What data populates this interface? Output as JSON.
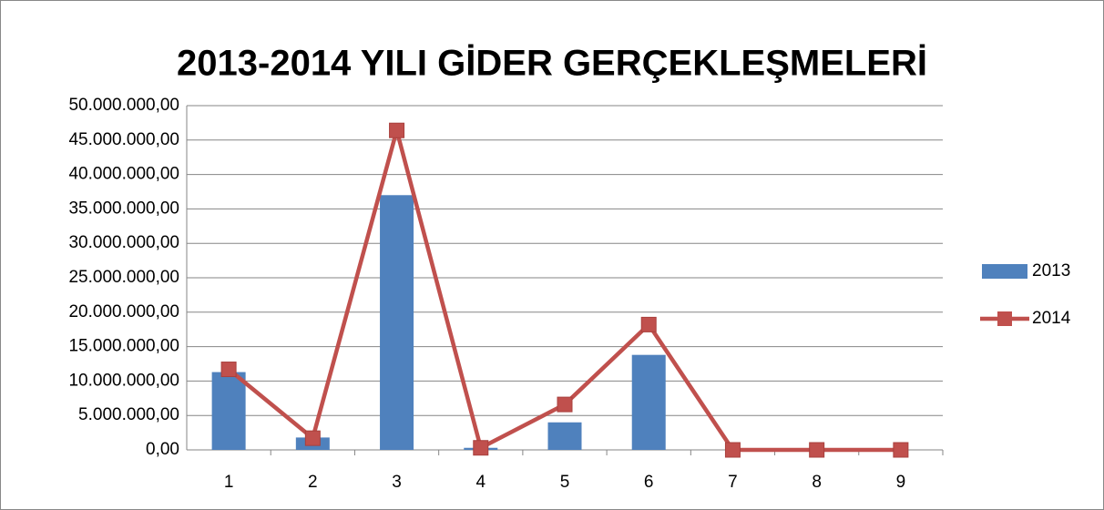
{
  "chart_data": {
    "type": "combo",
    "title": "2013-2014 YILI GİDER GERÇEKLEŞMELERİ",
    "categories": [
      "1",
      "2",
      "3",
      "4",
      "5",
      "6",
      "7",
      "8",
      "9"
    ],
    "series": [
      {
        "name": "2013",
        "type": "bar",
        "color": "#4f81bd",
        "values": [
          11300000,
          1800000,
          37000000,
          300000,
          4000000,
          13800000,
          0,
          0,
          0
        ]
      },
      {
        "name": "2014",
        "type": "line",
        "color": "#c0504d",
        "values": [
          11700000,
          1700000,
          46400000,
          300000,
          6600000,
          18200000,
          0,
          0,
          0
        ]
      }
    ],
    "ylim": [
      0,
      50000000
    ],
    "yticks": [
      {
        "value": 0,
        "label": "0,00"
      },
      {
        "value": 5000000,
        "label": "5.000.000,00"
      },
      {
        "value": 10000000,
        "label": "10.000.000,00"
      },
      {
        "value": 15000000,
        "label": "15.000.000,00"
      },
      {
        "value": 20000000,
        "label": "20.000.000,00"
      },
      {
        "value": 25000000,
        "label": "25.000.000,00"
      },
      {
        "value": 30000000,
        "label": "30.000.000,00"
      },
      {
        "value": 35000000,
        "label": "35.000.000,00"
      },
      {
        "value": 40000000,
        "label": "40.000.000,00"
      },
      {
        "value": 45000000,
        "label": "45.000.000,00"
      },
      {
        "value": 50000000,
        "label": "50.000.000,00"
      }
    ],
    "grid": true,
    "legend": "right"
  }
}
